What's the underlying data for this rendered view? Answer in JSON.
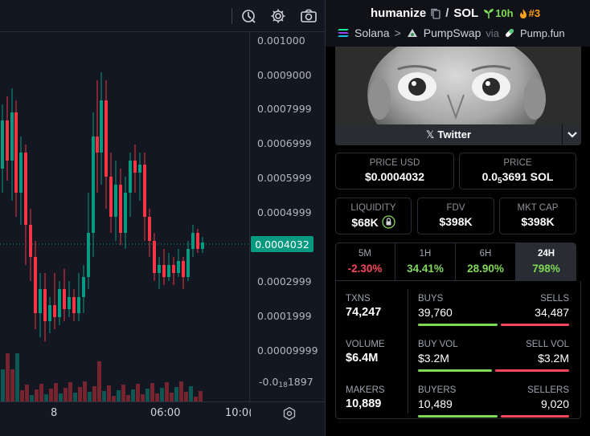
{
  "chart": {
    "price_labels": [
      "0.001000",
      "0.0009000",
      "0.0007999",
      "0.0006999",
      "0.0005999",
      "0.0004999",
      "0.0002999",
      "0.0001999",
      "0.00009999"
    ],
    "low_label_prefix": "-0.0",
    "low_label_sub": "18",
    "low_label_suffix": "1897",
    "current_price": "0.0004032",
    "time_labels": [
      "8",
      "06:00",
      "10:0("
    ],
    "up_color": "#089981",
    "down_color": "#f23645"
  },
  "token": {
    "name": "humanize",
    "separator": "/",
    "quote": "SOL",
    "age": "10h",
    "rank": "#3"
  },
  "route": {
    "chain": "Solana",
    "arrow": ">",
    "dex": "PumpSwap",
    "via": "via",
    "launchpad": "Pump.fun"
  },
  "twitter_label": "Twitter",
  "price_usd": {
    "label": "PRICE USD",
    "value": "$0.0004032"
  },
  "price_native": {
    "label": "PRICE",
    "prefix": "0.0",
    "sub": "5",
    "suffix": "3691 SOL"
  },
  "liquidity": {
    "label": "LIQUIDITY",
    "value": "$68K"
  },
  "fdv": {
    "label": "FDV",
    "value": "$398K"
  },
  "mktcap": {
    "label": "MKT CAP",
    "value": "$398K"
  },
  "timeframes": [
    {
      "label": "5M",
      "value": "-2.30%"
    },
    {
      "label": "1H",
      "value": "34.41%"
    },
    {
      "label": "6H",
      "value": "28.90%"
    },
    {
      "label": "24H",
      "value": "798%"
    }
  ],
  "stats": {
    "txns": {
      "label": "TXNS",
      "value": "74,247"
    },
    "buys": {
      "label": "BUYS",
      "value": "39,760",
      "ratio": 0.536
    },
    "sells": {
      "label": "SELLS",
      "value": "34,487"
    },
    "volume": {
      "label": "VOLUME",
      "value": "$6.4M"
    },
    "buy_vol": {
      "label": "BUY VOL",
      "value": "$3.2M",
      "ratio": 0.5
    },
    "sell_vol": {
      "label": "SELL VOL",
      "value": "$3.2M"
    },
    "makers": {
      "label": "MAKERS",
      "value": "10,889"
    },
    "buyers": {
      "label": "BUYERS",
      "value": "10,489",
      "ratio": 0.538
    },
    "sellers": {
      "label": "SELLERS",
      "value": "9,020"
    }
  }
}
